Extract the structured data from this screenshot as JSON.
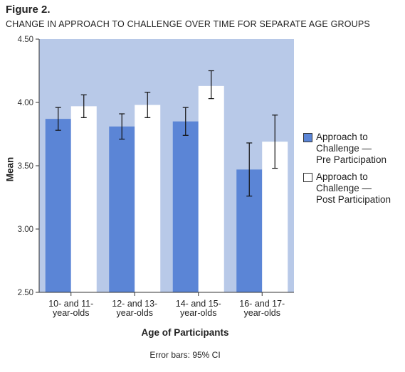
{
  "figure": {
    "label": "Figure 2.",
    "title": "CHANGE IN APPROACH TO CHALLENGE OVER TIME FOR SEPARATE AGE GROUPS"
  },
  "footnote": "Error bars: 95% CI",
  "colors": {
    "plot_background": "#b8c9e8",
    "pre": "#5b85d6",
    "post": "#ffffff"
  },
  "chart_data": {
    "type": "bar",
    "title": "",
    "xlabel": "Age of Participants",
    "ylabel": "Mean",
    "ylim": [
      2.5,
      4.5
    ],
    "yticks": [
      "2.50",
      "3.00",
      "3.50",
      "4.00",
      "4.50"
    ],
    "categories": [
      [
        "10- and 11-",
        "year-olds"
      ],
      [
        "12- and 13-",
        "year-olds"
      ],
      [
        "14- and 15-",
        "year-olds"
      ],
      [
        "16- and 17-",
        "year-olds"
      ]
    ],
    "series": [
      {
        "name": "Approach to\nChallenge —\nPre Participation",
        "values": [
          3.87,
          3.81,
          3.85,
          3.47
        ],
        "ci_low": [
          3.78,
          3.71,
          3.74,
          3.26
        ],
        "ci_high": [
          3.96,
          3.91,
          3.96,
          3.68
        ]
      },
      {
        "name": "Approach to\nChallenge —\nPost Participation",
        "values": [
          3.97,
          3.98,
          4.13,
          3.69
        ],
        "ci_low": [
          3.88,
          3.88,
          4.03,
          3.48
        ],
        "ci_high": [
          4.06,
          4.08,
          4.25,
          3.9
        ]
      }
    ],
    "legend_position": "right",
    "grid": false
  }
}
